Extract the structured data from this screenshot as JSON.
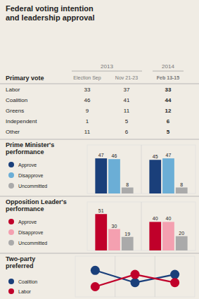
{
  "chart_data": [
    {
      "type": "table",
      "title": "Federal voting intention\nand leadership approval",
      "subtitle": "Primary vote",
      "annotations": [
        "2013",
        "2014"
      ],
      "categories": [
        "Labor",
        "Coalition",
        "Greens",
        "Independent",
        "Other"
      ],
      "series": [
        {
          "name": "Election Sep",
          "values": [
            33,
            46,
            9,
            1,
            11
          ]
        },
        {
          "name": "Nov 21-23",
          "values": [
            37,
            41,
            11,
            5,
            6
          ]
        },
        {
          "name": "Feb 13-15",
          "values": [
            33,
            44,
            12,
            6,
            5
          ]
        }
      ]
    },
    {
      "type": "bar",
      "title": "Prime Minister's\nperformance",
      "categories": [
        null,
        null
      ],
      "series": [
        {
          "name": "Approve",
          "color": "#1a3f7a",
          "values": [
            47,
            45
          ]
        },
        {
          "name": "Disapprove",
          "color": "#6baed6",
          "values": [
            46,
            47
          ]
        },
        {
          "name": "Uncommitted",
          "color": "#aaaaaa",
          "values": [
            8,
            8
          ]
        }
      ],
      "ylim": [
        0,
        65
      ],
      "data_labels": true,
      "tick_labels": false,
      "grid": false
    },
    {
      "type": "bar",
      "title": "Opposition Leader's\nperformance",
      "categories": [
        null,
        null
      ],
      "series": [
        {
          "name": "Approve",
          "color": "#c0002a",
          "values": [
            51,
            40
          ]
        },
        {
          "name": "Disapprove",
          "color": "#f4a0b0",
          "values": [
            30,
            40
          ]
        },
        {
          "name": "Uncommitted",
          "color": "#aaaaaa",
          "values": [
            19,
            20
          ]
        }
      ],
      "ylim": [
        0,
        68
      ],
      "data_labels": true,
      "tick_labels": false,
      "grid": false
    },
    {
      "type": "line",
      "title": "Two-party\npreferred",
      "categories": [
        null,
        null,
        null
      ],
      "series": [
        {
          "name": "Coalition",
          "color": "#1a3f7a",
          "values": [
            54,
            48,
            52
          ]
        },
        {
          "name": "Labor",
          "color": "#c0002a",
          "values": [
            46,
            52,
            48
          ]
        }
      ],
      "ylim": [
        41,
        61
      ],
      "marker": "circle",
      "data_labels": true,
      "tick_labels": false,
      "grid": false
    }
  ]
}
